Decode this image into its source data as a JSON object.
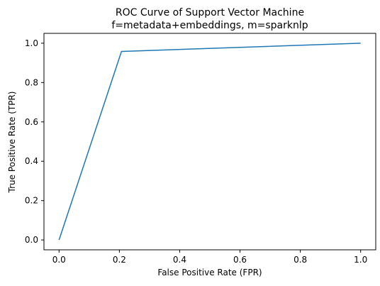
{
  "chart_data": {
    "type": "line",
    "title": "ROC Curve of Support Vector Machine",
    "subtitle": "f=metadata+embeddings, m=sparknlp",
    "xlabel": "False Positive Rate (FPR)",
    "ylabel": "True Positive Rate (TPR)",
    "xlim": [
      -0.05,
      1.05
    ],
    "ylim": [
      -0.05,
      1.05
    ],
    "xticks": [
      0.0,
      0.2,
      0.4,
      0.6,
      0.8,
      1.0
    ],
    "yticks": [
      0.0,
      0.2,
      0.4,
      0.6,
      0.8,
      1.0
    ],
    "xtick_labels": [
      "0.0",
      "0.2",
      "0.4",
      "0.6",
      "0.8",
      "1.0"
    ],
    "ytick_labels": [
      "0.0",
      "0.2",
      "0.4",
      "0.6",
      "0.8",
      "1.0"
    ],
    "grid": false,
    "series": [
      {
        "x": [
          0.0,
          0.207,
          1.0
        ],
        "y": [
          0.0,
          0.958,
          1.0
        ],
        "color": "#1f77b4"
      }
    ]
  }
}
